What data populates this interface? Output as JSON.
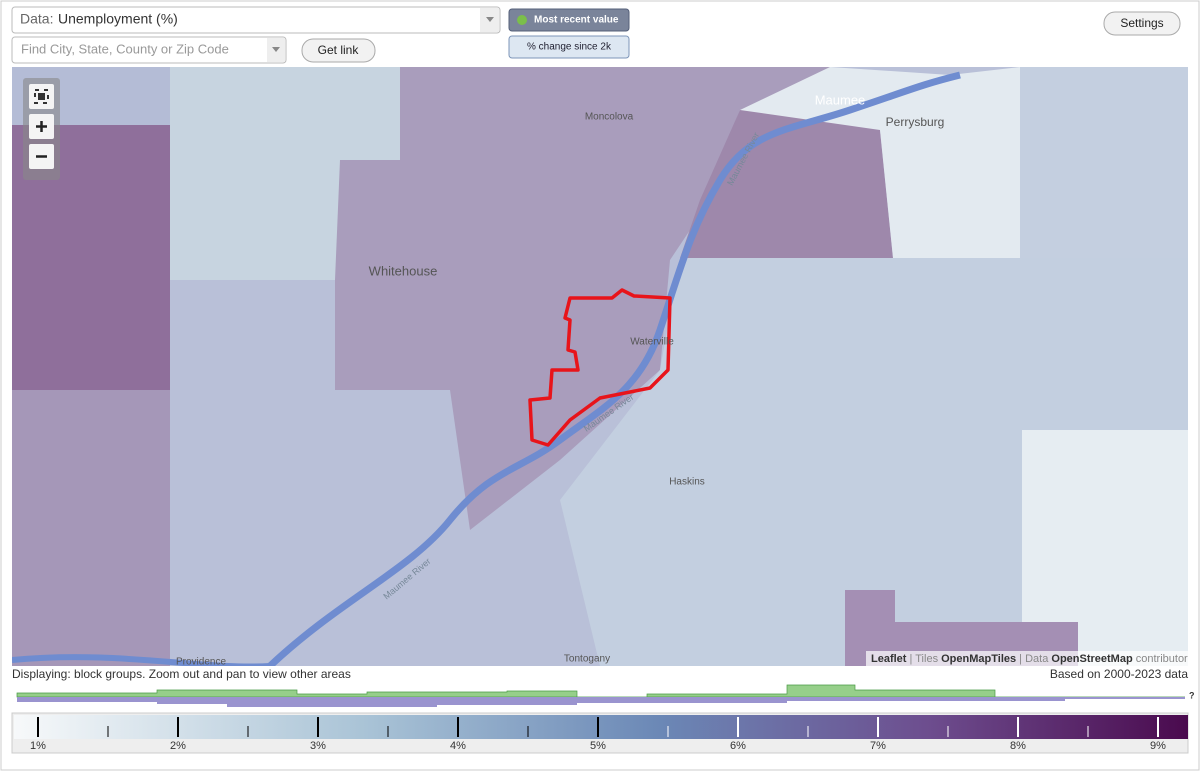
{
  "header": {
    "data_label": "Data:",
    "data_value": "Unemployment (%)",
    "search_placeholder": "Find City, State, County or Zip Code",
    "get_link": "Get link",
    "most_recent": "Most recent value",
    "change": "% change since 2k",
    "settings": "Settings"
  },
  "map": {
    "places": [
      "Moncolova",
      "Maumee",
      "Perrysburg",
      "Whitehouse",
      "Waterville",
      "Haskins",
      "Providence",
      "Tontogany"
    ],
    "rivers": [
      "Maumee River",
      "Maumee River",
      "Maumee River"
    ],
    "attribution": {
      "leaflet": "Leaflet",
      "tiles": "| Tiles",
      "tiles_source": "OpenMapTiles",
      "data": "| Data",
      "data_source": "OpenStreetMap",
      "contributors": "contributors"
    }
  },
  "footer": {
    "displaying": "Displaying: block groups. Zoom out and pan to view other areas",
    "based_on": "Based on 2000-2023 data"
  },
  "legend": {
    "labels": [
      "1%",
      "2%",
      "3%",
      "4%",
      "5%",
      "6%",
      "7%",
      "8%",
      "9%"
    ]
  }
}
